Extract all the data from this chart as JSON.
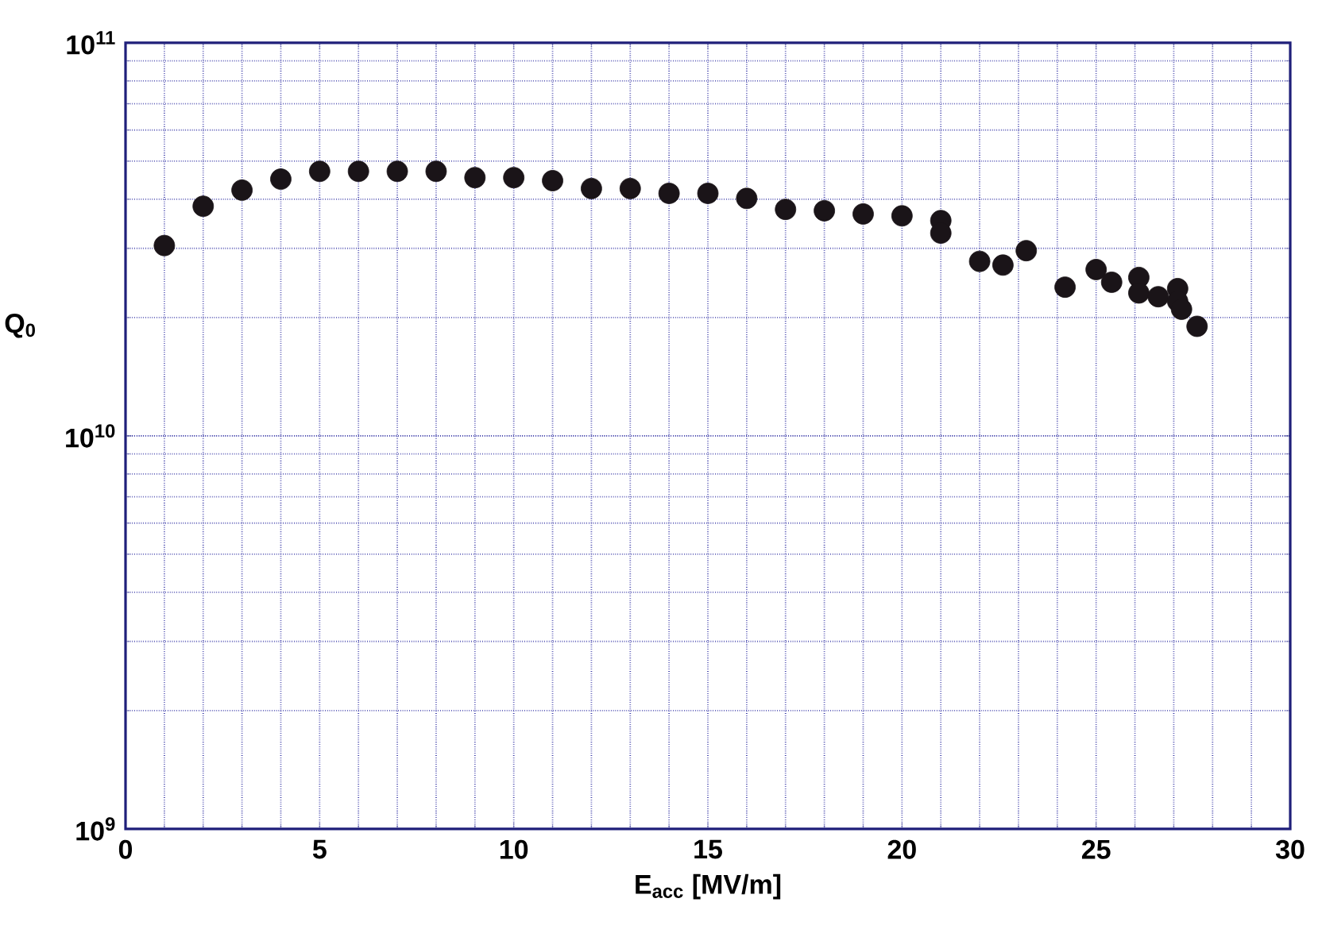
{
  "chart_data": {
    "type": "scatter",
    "xlabel": "E$_{acc}$ [MV/m]",
    "ylabel": "Q$_{0}$",
    "x": [
      1,
      2,
      3,
      4,
      5,
      6,
      7,
      8,
      9,
      10,
      11,
      12,
      13,
      14,
      15,
      16,
      17,
      18,
      19,
      20,
      21,
      21,
      22,
      22.6,
      23.2,
      24.2,
      25,
      25.4,
      26.1,
      26.1,
      26.6,
      27.1,
      27.1,
      27.2,
      27.6
    ],
    "series": [
      {
        "color": "#1a1418",
        "values": [
          30500000000.0,
          38400000000.0,
          42200000000.0,
          45000000000.0,
          47100000000.0,
          47100000000.0,
          47100000000.0,
          47100000000.0,
          45400000000.0,
          45400000000.0,
          44600000000.0,
          42600000000.0,
          42600000000.0,
          41400000000.0,
          41400000000.0,
          40200000000.0,
          37700000000.0,
          37400000000.0,
          36700000000.0,
          36300000000.0,
          35300000000.0,
          32800000000.0,
          27800000000.0,
          27200000000.0,
          29600000000.0,
          23900000000.0,
          26500000000.0,
          24600000000.0,
          25300000000.0,
          23100000000.0,
          22600000000.0,
          23700000000.0,
          22000000000.0,
          21000000000.0,
          19000000000.0
        ]
      }
    ],
    "xlim": [
      0,
      30
    ],
    "xticks": [
      0,
      5,
      10,
      15,
      20,
      25,
      30
    ],
    "ylim": [
      1000000000.0,
      100000000000.0
    ],
    "yticks": [
      {
        "value": 1000000000.0,
        "label": "10$^{9}$"
      },
      {
        "value": 10000000000.0,
        "label": "10$^{10}$"
      },
      {
        "value": 100000000000.0,
        "label": "10$^{11}$"
      }
    ],
    "log": "y",
    "grid": true,
    "marker": "circle"
  }
}
